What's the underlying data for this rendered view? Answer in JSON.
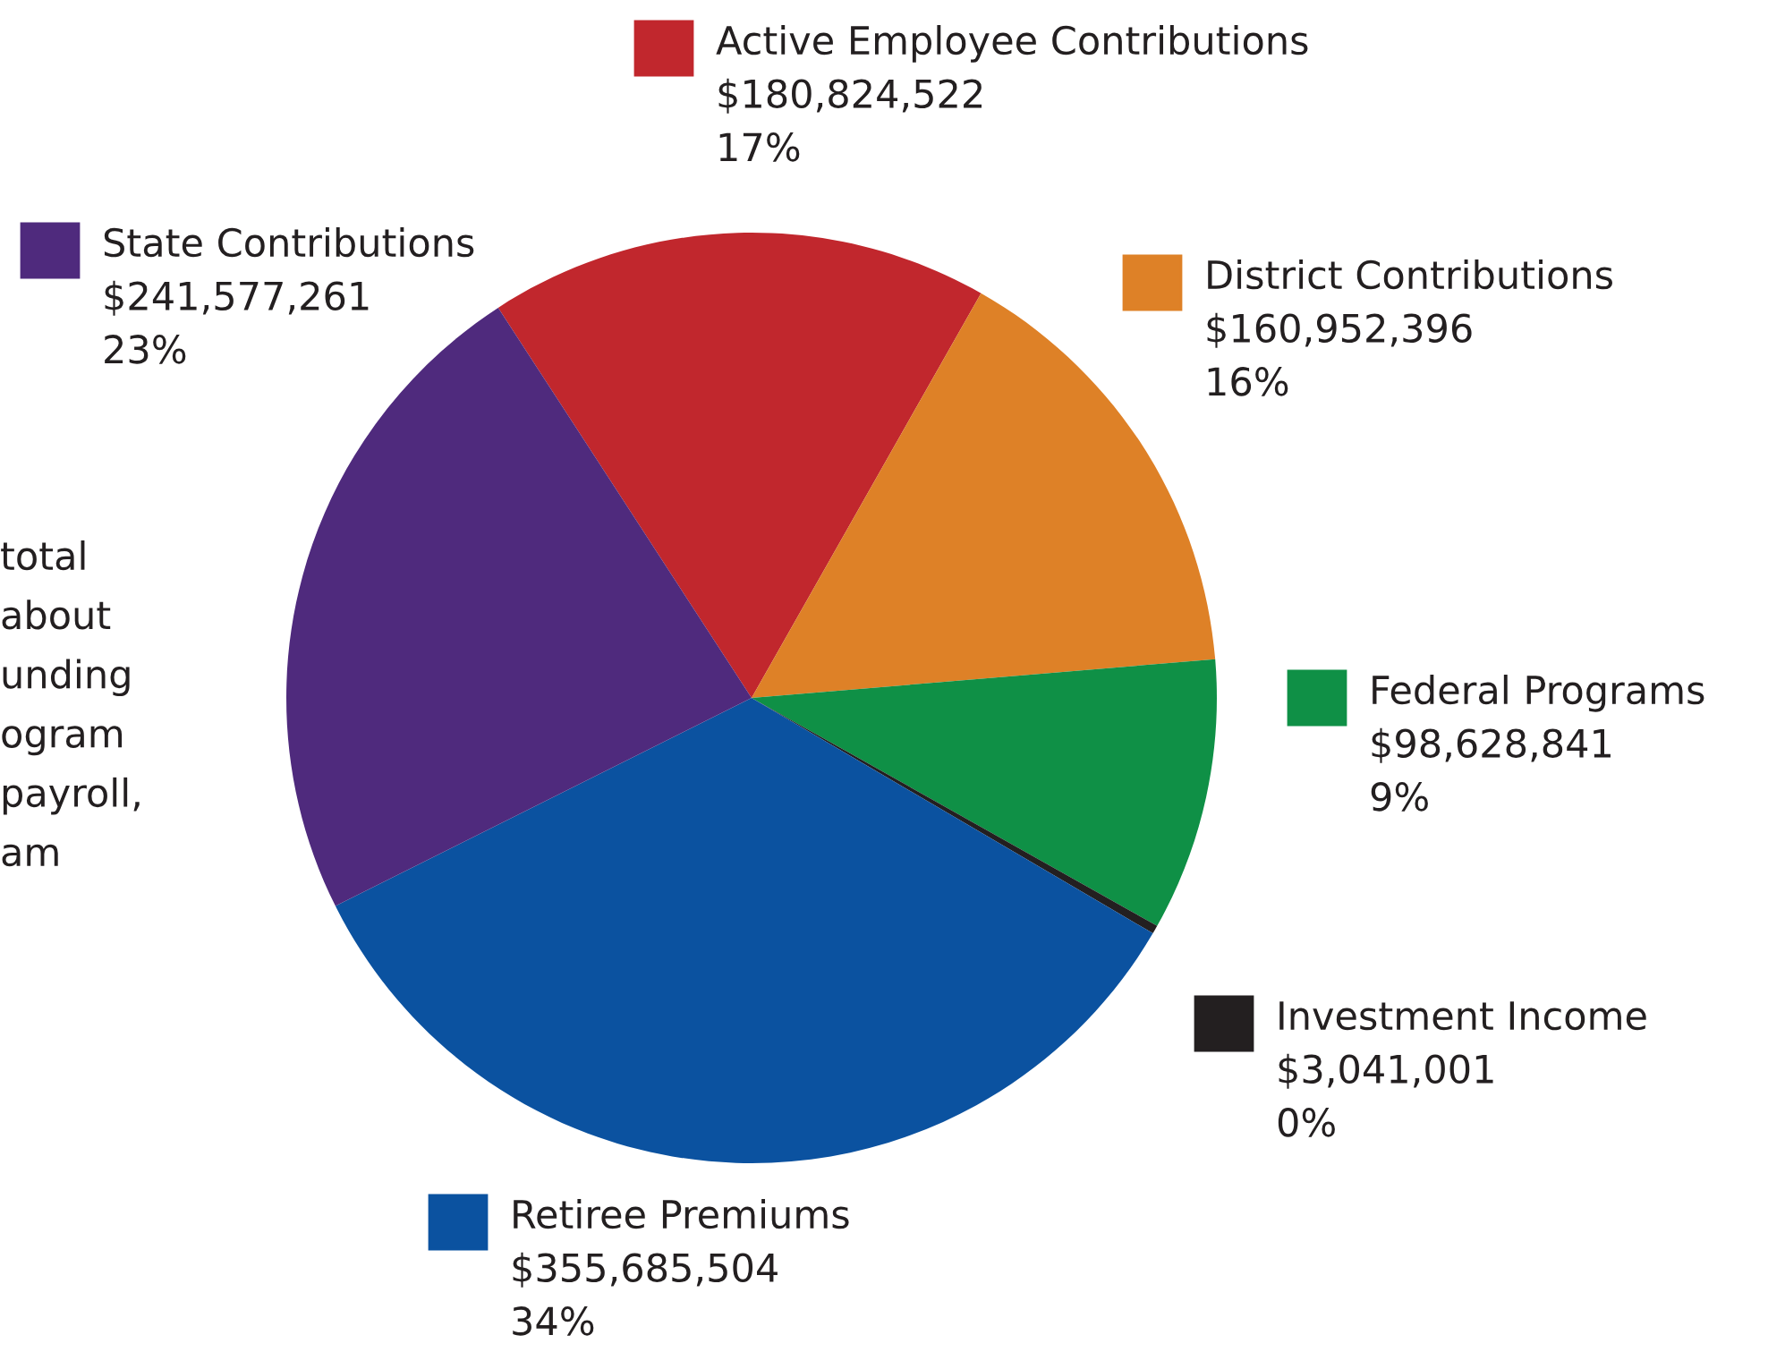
{
  "chart_data": {
    "type": "pie",
    "categories": [
      "Active Employee Contributions",
      "District Contributions",
      "Federal Programs",
      "Investment Income",
      "Retiree Premiums",
      "State Contributions"
    ],
    "values": [
      180824522,
      160952396,
      98628841,
      3041001,
      355685504,
      241577261
    ],
    "value_labels": [
      "$180,824,522\n17%",
      "$160,952,396\n16%",
      "$98,628,841\n9%",
      "$3,041,001\n0%",
      "$355,685,504\n34%",
      "$241,577,261\n23%"
    ],
    "colors": [
      "#c1272d",
      "#de8127",
      "#0f9046",
      "#231f20",
      "#0b52a0",
      "#4f2a7d"
    ],
    "legend": "right",
    "annotations": [
      "total\nabout\nunding\nogram\npayroll,\nam"
    ]
  }
}
